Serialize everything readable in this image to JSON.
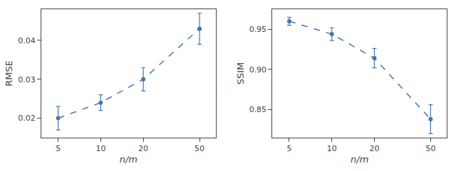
{
  "chart_data": [
    {
      "type": "scatter",
      "log": "x",
      "grid": false,
      "x": [
        5,
        10,
        20,
        50
      ],
      "xlim": [
        3.8,
        65
      ],
      "xticks": [
        5,
        10,
        20,
        50
      ],
      "xlabel": "n/m",
      "ylabel": "RMSE",
      "ylim": [
        0.015,
        0.048
      ],
      "yticks": [
        0.02,
        0.03,
        0.04
      ],
      "series": [
        {
          "color": "#4477AA",
          "marker": "circle",
          "line_style": "dashed",
          "values": [
            0.02,
            0.024,
            0.03,
            0.043
          ],
          "yerr": [
            0.003,
            0.002,
            0.003,
            0.004
          ]
        }
      ]
    },
    {
      "type": "scatter",
      "log": "x",
      "grid": false,
      "x": [
        5,
        10,
        20,
        50
      ],
      "xlim": [
        3.8,
        65
      ],
      "xticks": [
        5,
        10,
        20,
        50
      ],
      "xlabel": "n/m",
      "ylabel": "SSIM",
      "ylim": [
        0.815,
        0.975
      ],
      "yticks": [
        0.85,
        {
          "value": 0.9,
          "label": "0.90"
        },
        0.95
      ],
      "series": [
        {
          "color": "#4477AA",
          "marker": "circle",
          "line_style": "dashed",
          "values": [
            0.96,
            0.944,
            0.914,
            0.838
          ],
          "yerr": [
            0.005,
            0.008,
            0.012,
            0.018
          ]
        }
      ]
    }
  ]
}
